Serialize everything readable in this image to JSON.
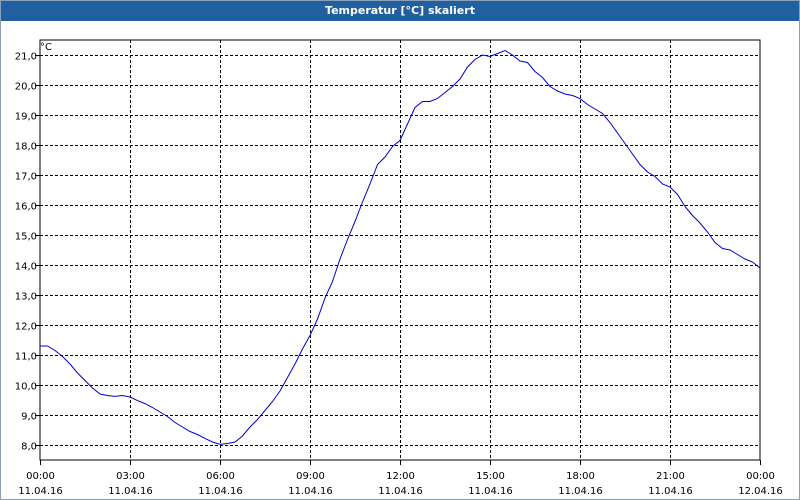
{
  "window": {
    "title": "Temperatur [°C] skaliert"
  },
  "chart_data": {
    "type": "line",
    "title": "Temperatur [°C] skaliert",
    "ylabel": "°C",
    "ylim": [
      7.5,
      21.5
    ],
    "xlim": [
      "2016-04-11 00:00",
      "2016-04-12 00:00"
    ],
    "grid": true,
    "y_ticks": [
      "8,0",
      "9,0",
      "10,0",
      "11,0",
      "12,0",
      "13,0",
      "14,0",
      "15,0",
      "16,0",
      "17,0",
      "18,0",
      "19,0",
      "20,0",
      "21,0"
    ],
    "x_ticks": [
      {
        "time": "00:00",
        "date": "11.04.16"
      },
      {
        "time": "03:00",
        "date": "11.04.16"
      },
      {
        "time": "06:00",
        "date": "11.04.16"
      },
      {
        "time": "09:00",
        "date": "11.04.16"
      },
      {
        "time": "12:00",
        "date": "11.04.16"
      },
      {
        "time": "15:00",
        "date": "11.04.16"
      },
      {
        "time": "18:00",
        "date": "11.04.16"
      },
      {
        "time": "21:00",
        "date": "11.04.16"
      },
      {
        "time": "00:00",
        "date": "12.04.16"
      }
    ],
    "series": [
      {
        "color": "#0000cc",
        "points": [
          [
            "00:00",
            11.3
          ],
          [
            "00:15",
            11.3
          ],
          [
            "00:30",
            11.15
          ],
          [
            "00:45",
            10.95
          ],
          [
            "01:00",
            10.7
          ],
          [
            "01:15",
            10.4
          ],
          [
            "01:30",
            10.15
          ],
          [
            "01:45",
            9.9
          ],
          [
            "02:00",
            9.7
          ],
          [
            "02:15",
            9.65
          ],
          [
            "02:30",
            9.62
          ],
          [
            "02:45",
            9.65
          ],
          [
            "03:00",
            9.6
          ],
          [
            "03:15",
            9.48
          ],
          [
            "03:30",
            9.38
          ],
          [
            "03:45",
            9.25
          ],
          [
            "04:00",
            9.1
          ],
          [
            "04:15",
            8.95
          ],
          [
            "04:30",
            8.75
          ],
          [
            "04:45",
            8.6
          ],
          [
            "05:00",
            8.45
          ],
          [
            "05:15",
            8.35
          ],
          [
            "05:30",
            8.22
          ],
          [
            "05:45",
            8.1
          ],
          [
            "06:00",
            8.02
          ],
          [
            "06:15",
            8.05
          ],
          [
            "06:30",
            8.1
          ],
          [
            "06:45",
            8.3
          ],
          [
            "07:00",
            8.6
          ],
          [
            "07:15",
            8.85
          ],
          [
            "07:30",
            9.15
          ],
          [
            "07:45",
            9.45
          ],
          [
            "08:00",
            9.8
          ],
          [
            "08:15",
            10.25
          ],
          [
            "08:30",
            10.7
          ],
          [
            "08:45",
            11.2
          ],
          [
            "09:00",
            11.65
          ],
          [
            "09:15",
            12.2
          ],
          [
            "09:30",
            12.9
          ],
          [
            "09:45",
            13.45
          ],
          [
            "10:00",
            14.2
          ],
          [
            "10:15",
            14.85
          ],
          [
            "10:30",
            15.45
          ],
          [
            "10:45",
            16.1
          ],
          [
            "11:00",
            16.7
          ],
          [
            "11:15",
            17.35
          ],
          [
            "11:30",
            17.6
          ],
          [
            "11:45",
            17.95
          ],
          [
            "12:00",
            18.15
          ],
          [
            "12:15",
            18.7
          ],
          [
            "12:30",
            19.25
          ],
          [
            "12:45",
            19.45
          ],
          [
            "13:00",
            19.45
          ],
          [
            "13:15",
            19.55
          ],
          [
            "13:30",
            19.75
          ],
          [
            "13:45",
            19.95
          ],
          [
            "14:00",
            20.2
          ],
          [
            "14:15",
            20.6
          ],
          [
            "14:30",
            20.85
          ],
          [
            "14:45",
            21.0
          ],
          [
            "15:00",
            20.95
          ],
          [
            "15:15",
            21.05
          ],
          [
            "15:30",
            21.15
          ],
          [
            "15:45",
            21.0
          ],
          [
            "16:00",
            20.8
          ],
          [
            "16:15",
            20.75
          ],
          [
            "16:30",
            20.45
          ],
          [
            "16:45",
            20.25
          ],
          [
            "17:00",
            19.95
          ],
          [
            "17:15",
            19.8
          ],
          [
            "17:30",
            19.7
          ],
          [
            "17:45",
            19.65
          ],
          [
            "18:00",
            19.55
          ],
          [
            "18:15",
            19.35
          ],
          [
            "18:30",
            19.2
          ],
          [
            "18:45",
            19.05
          ],
          [
            "19:00",
            18.75
          ],
          [
            "19:15",
            18.4
          ],
          [
            "19:30",
            18.05
          ],
          [
            "19:45",
            17.7
          ],
          [
            "20:00",
            17.35
          ],
          [
            "20:15",
            17.1
          ],
          [
            "20:30",
            16.95
          ],
          [
            "20:45",
            16.7
          ],
          [
            "21:00",
            16.6
          ],
          [
            "21:15",
            16.35
          ],
          [
            "21:30",
            15.95
          ],
          [
            "21:45",
            15.65
          ],
          [
            "22:00",
            15.4
          ],
          [
            "22:15",
            15.1
          ],
          [
            "22:30",
            14.75
          ],
          [
            "22:45",
            14.55
          ],
          [
            "23:00",
            14.5
          ],
          [
            "23:15",
            14.35
          ],
          [
            "23:30",
            14.2
          ],
          [
            "23:45",
            14.1
          ],
          [
            "24:00",
            13.9
          ]
        ]
      }
    ]
  }
}
